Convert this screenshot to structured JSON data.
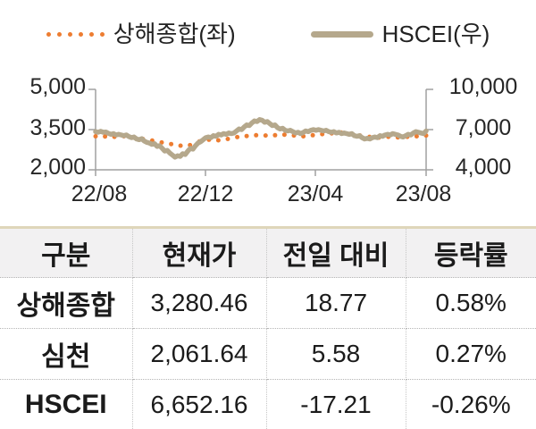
{
  "colors": {
    "shanghai_orange": "#ED7D31",
    "hscei_tan": "#B5A88C",
    "axis_gray": "#A0A0A0",
    "table_top_border": "#DFD6BA",
    "table_header_bg": "#F2F1F2"
  },
  "chart_data": {
    "type": "line",
    "title": "",
    "legend_position": "top",
    "grid": false,
    "x_axis": {
      "tick_labels": [
        "22/08",
        "22/12",
        "23/04",
        "23/08"
      ]
    },
    "left_axis": {
      "min": 2000,
      "max": 5000,
      "tick_labels_top_to_bottom": [
        "5,000",
        "3,500",
        "2,000"
      ]
    },
    "right_axis": {
      "min": 4000,
      "max": 10000,
      "tick_labels_top_to_bottom": [
        "10,000",
        "7,000",
        "4,000"
      ]
    },
    "series": [
      {
        "name": "상해종합(좌)",
        "axis": "left",
        "style": "dotted",
        "color": "#ED7D31",
        "values": [
          3250,
          3245,
          3230,
          3250,
          3210,
          3150,
          3090,
          3020,
          2960,
          2900,
          2920,
          3060,
          3120,
          3100,
          3150,
          3220,
          3260,
          3290,
          3280,
          3290,
          3310,
          3280,
          3250,
          3290,
          3330,
          3360,
          3390,
          3340,
          3280,
          3230,
          3200,
          3230,
          3210,
          3230,
          3250,
          3280
        ]
      },
      {
        "name": "HSCEI(우)",
        "axis": "right",
        "style": "solid",
        "color": "#B5A88C",
        "values": [
          6850,
          6800,
          6870,
          6800,
          6820,
          6720,
          6650,
          6700,
          6600,
          6650,
          6600,
          6550,
          6600,
          6480,
          6400,
          6450,
          6300,
          6250,
          6320,
          6150,
          6050,
          6000,
          5900,
          5950,
          5750,
          5800,
          5600,
          5400,
          5450,
          5250,
          5100,
          4950,
          5050,
          5000,
          5200,
          5150,
          5400,
          5600,
          5550,
          5800,
          6000,
          6100,
          6250,
          6400,
          6450,
          6400,
          6550,
          6500,
          6650,
          6600,
          6700,
          6650,
          6750,
          6700,
          6750,
          6900,
          7050,
          7000,
          7200,
          7350,
          7300,
          7500,
          7650,
          7600,
          7750,
          7700,
          7550,
          7600,
          7450,
          7300,
          7350,
          7150,
          7050,
          7100,
          6950,
          6900,
          6950,
          6850,
          6750,
          6800,
          6700,
          6780,
          6900,
          6850,
          6950,
          7000,
          6950,
          7000,
          6950,
          6900,
          6950,
          6850,
          6800,
          6850,
          6750,
          6800,
          6700,
          6750,
          6700,
          6650,
          6700,
          6550,
          6500,
          6550,
          6400,
          6300,
          6350,
          6300,
          6400,
          6450,
          6400,
          6550,
          6500,
          6600,
          6650,
          6600,
          6700,
          6650,
          6600,
          6500,
          6450,
          6550,
          6650,
          6600,
          6750,
          6850,
          6800,
          6750,
          6700,
          6900
        ]
      }
    ]
  },
  "table": {
    "headers": [
      "구분",
      "현재가",
      "전일 대비",
      "등락률"
    ],
    "rows": [
      {
        "name": "상해종합",
        "price": "3,280.46",
        "change": "18.77",
        "pct": "0.58%"
      },
      {
        "name": "심천",
        "price": "2,061.64",
        "change": "5.58",
        "pct": "0.27%"
      },
      {
        "name": "HSCEI",
        "price": "6,652.16",
        "change": "-17.21",
        "pct": "-0.26%"
      }
    ]
  }
}
